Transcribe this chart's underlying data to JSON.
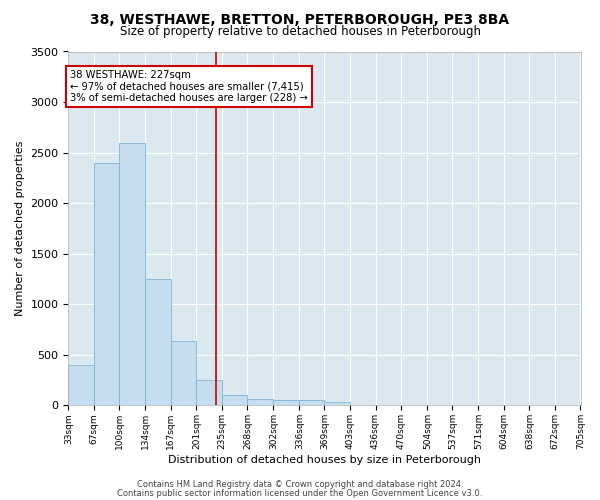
{
  "title": "38, WESTHAWE, BRETTON, PETERBOROUGH, PE3 8BA",
  "subtitle": "Size of property relative to detached houses in Peterborough",
  "xlabel": "Distribution of detached houses by size in Peterborough",
  "ylabel": "Number of detached properties",
  "bar_color": "#c5ddef",
  "bar_edge_color": "#7fb3d3",
  "figure_bg": "#ffffff",
  "axes_bg": "#dce8f0",
  "grid_color": "#ffffff",
  "red_line_color": "#cc0000",
  "annotation_text": "38 WESTHAWE: 227sqm\n← 97% of detached houses are smaller (7,415)\n3% of semi-detached houses are larger (228) →",
  "annotation_box_color": "#ffffff",
  "annotation_border_color": "#cc0000",
  "bins": [
    "33sqm",
    "67sqm",
    "100sqm",
    "134sqm",
    "167sqm",
    "201sqm",
    "235sqm",
    "268sqm",
    "302sqm",
    "336sqm",
    "369sqm",
    "403sqm",
    "436sqm",
    "470sqm",
    "504sqm",
    "537sqm",
    "571sqm",
    "604sqm",
    "638sqm",
    "672sqm",
    "705sqm"
  ],
  "bin_edges": [
    33,
    67,
    100,
    134,
    167,
    201,
    235,
    268,
    302,
    336,
    369,
    403,
    436,
    470,
    504,
    537,
    571,
    604,
    638,
    672,
    705
  ],
  "bar_heights": [
    400,
    2400,
    2600,
    1250,
    640,
    250,
    100,
    60,
    55,
    55,
    35,
    0,
    0,
    0,
    0,
    0,
    0,
    0,
    0,
    0
  ],
  "red_line_x": 227,
  "ylim": [
    0,
    3500
  ],
  "yticks": [
    0,
    500,
    1000,
    1500,
    2000,
    2500,
    3000,
    3500
  ],
  "footnote1": "Contains HM Land Registry data © Crown copyright and database right 2024.",
  "footnote2": "Contains public sector information licensed under the Open Government Licence v3.0."
}
